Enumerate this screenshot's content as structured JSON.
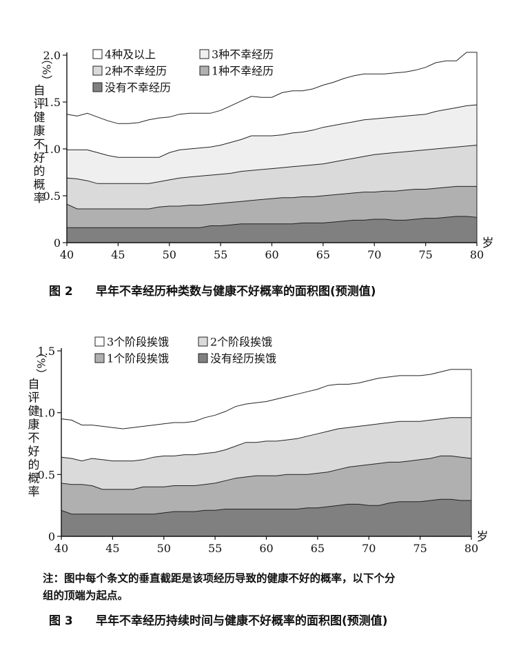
{
  "chart_data": [
    {
      "type": "area",
      "figure_label": "图 2",
      "title": "早年不幸经历种类数与健康不好概率的面积图(预测值)",
      "ylabel": "自评健康不好的概率（%）",
      "ylabel_unit": "（%）",
      "ylabel_text": [
        "自",
        "评",
        "健",
        "康",
        "不",
        "好",
        "的",
        "概",
        "率"
      ],
      "xlabel": "岁",
      "ylim": [
        0,
        2.0
      ],
      "xlim": [
        40,
        80
      ],
      "x_ticks": [
        40,
        45,
        50,
        55,
        60,
        65,
        70,
        75,
        80
      ],
      "y_ticks": [
        0,
        0.5,
        1.0,
        1.5,
        2.0
      ],
      "y_tick_labels": [
        "0",
        "0.5",
        "1.0",
        "1.5",
        "2.0"
      ],
      "x": [
        40,
        41,
        42,
        43,
        44,
        45,
        46,
        47,
        48,
        49,
        50,
        51,
        52,
        53,
        54,
        55,
        56,
        57,
        58,
        59,
        60,
        61,
        62,
        63,
        64,
        65,
        66,
        67,
        68,
        69,
        70,
        71,
        72,
        73,
        74,
        75,
        76,
        77,
        78,
        79,
        80
      ],
      "legend": [
        "4种及以上",
        "3种不幸经历",
        "2种不幸经历",
        "1种不幸经历",
        "没有不幸经历"
      ],
      "series": [
        {
          "name": "没有不幸经历",
          "color": "#808080",
          "values": [
            0.16,
            0.16,
            0.16,
            0.16,
            0.16,
            0.16,
            0.16,
            0.16,
            0.16,
            0.16,
            0.16,
            0.16,
            0.16,
            0.16,
            0.18,
            0.18,
            0.19,
            0.2,
            0.2,
            0.2,
            0.2,
            0.2,
            0.2,
            0.21,
            0.21,
            0.21,
            0.22,
            0.23,
            0.24,
            0.24,
            0.25,
            0.25,
            0.24,
            0.24,
            0.25,
            0.26,
            0.26,
            0.27,
            0.28,
            0.28,
            0.27
          ]
        },
        {
          "name": "1种不幸经历",
          "color": "#b0b0b0",
          "values": [
            0.41,
            0.36,
            0.36,
            0.36,
            0.36,
            0.36,
            0.36,
            0.36,
            0.36,
            0.38,
            0.39,
            0.39,
            0.4,
            0.4,
            0.41,
            0.42,
            0.43,
            0.44,
            0.45,
            0.46,
            0.47,
            0.48,
            0.48,
            0.49,
            0.49,
            0.5,
            0.51,
            0.52,
            0.53,
            0.54,
            0.54,
            0.55,
            0.55,
            0.56,
            0.57,
            0.57,
            0.58,
            0.59,
            0.6,
            0.6,
            0.6
          ]
        },
        {
          "name": "2种不幸经历",
          "color": "#dadada",
          "values": [
            0.69,
            0.68,
            0.66,
            0.63,
            0.63,
            0.63,
            0.63,
            0.63,
            0.63,
            0.65,
            0.67,
            0.69,
            0.7,
            0.71,
            0.72,
            0.73,
            0.74,
            0.76,
            0.77,
            0.78,
            0.79,
            0.8,
            0.81,
            0.82,
            0.83,
            0.84,
            0.86,
            0.88,
            0.9,
            0.92,
            0.94,
            0.95,
            0.96,
            0.97,
            0.98,
            0.99,
            1.0,
            1.01,
            1.02,
            1.03,
            1.04
          ]
        },
        {
          "name": "3种不幸经历",
          "color": "#efefef",
          "values": [
            0.99,
            0.99,
            0.99,
            0.96,
            0.93,
            0.91,
            0.91,
            0.91,
            0.91,
            0.91,
            0.96,
            0.99,
            1.0,
            1.01,
            1.02,
            1.04,
            1.07,
            1.1,
            1.14,
            1.14,
            1.14,
            1.15,
            1.17,
            1.18,
            1.2,
            1.23,
            1.25,
            1.27,
            1.29,
            1.31,
            1.32,
            1.33,
            1.34,
            1.35,
            1.36,
            1.37,
            1.4,
            1.42,
            1.44,
            1.46,
            1.47
          ]
        },
        {
          "name": "4种及以上",
          "color": "#ffffff",
          "values": [
            1.37,
            1.35,
            1.38,
            1.34,
            1.3,
            1.27,
            1.27,
            1.28,
            1.31,
            1.33,
            1.34,
            1.37,
            1.38,
            1.38,
            1.38,
            1.41,
            1.46,
            1.51,
            1.56,
            1.55,
            1.55,
            1.6,
            1.62,
            1.62,
            1.64,
            1.68,
            1.71,
            1.75,
            1.78,
            1.8,
            1.8,
            1.8,
            1.81,
            1.82,
            1.84,
            1.87,
            1.92,
            1.94,
            1.94,
            2.03,
            2.03
          ]
        }
      ]
    },
    {
      "type": "area",
      "figure_label": "图 3",
      "title": "早年不幸经历持续时间与健康不好概率的面积图(预测值)",
      "ylabel": "自评健康不好的概率（%）",
      "ylabel_unit": "（%）",
      "ylabel_text": [
        "自",
        "评",
        "健",
        "康",
        "不",
        "好",
        "的",
        "概",
        "率"
      ],
      "xlabel": "岁",
      "ylim": [
        0,
        1.5
      ],
      "xlim": [
        40,
        80
      ],
      "x_ticks": [
        40,
        45,
        50,
        55,
        60,
        65,
        70,
        75,
        80
      ],
      "y_ticks": [
        0,
        0.5,
        1.0,
        1.5
      ],
      "y_tick_labels": [
        "0",
        "0.5",
        "1.0",
        "1.5"
      ],
      "x": [
        40,
        41,
        42,
        43,
        44,
        45,
        46,
        47,
        48,
        49,
        50,
        51,
        52,
        53,
        54,
        55,
        56,
        57,
        58,
        59,
        60,
        61,
        62,
        63,
        64,
        65,
        66,
        67,
        68,
        69,
        70,
        71,
        72,
        73,
        74,
        75,
        76,
        77,
        78,
        79,
        80
      ],
      "legend": [
        "3个阶段挨饿",
        "2个阶段挨饿",
        "1个阶段挨饿",
        "没有经历挨饿"
      ],
      "series": [
        {
          "name": "没有经历挨饿",
          "color": "#808080",
          "values": [
            0.21,
            0.18,
            0.18,
            0.18,
            0.18,
            0.18,
            0.18,
            0.18,
            0.18,
            0.18,
            0.19,
            0.2,
            0.2,
            0.2,
            0.21,
            0.21,
            0.22,
            0.22,
            0.22,
            0.22,
            0.22,
            0.22,
            0.22,
            0.22,
            0.23,
            0.23,
            0.24,
            0.25,
            0.26,
            0.26,
            0.25,
            0.25,
            0.27,
            0.28,
            0.28,
            0.28,
            0.29,
            0.3,
            0.3,
            0.29,
            0.29
          ]
        },
        {
          "name": "1个阶段挨饿",
          "color": "#b0b0b0",
          "values": [
            0.43,
            0.42,
            0.42,
            0.41,
            0.38,
            0.38,
            0.38,
            0.38,
            0.4,
            0.4,
            0.4,
            0.41,
            0.41,
            0.41,
            0.42,
            0.43,
            0.45,
            0.47,
            0.48,
            0.49,
            0.49,
            0.49,
            0.5,
            0.5,
            0.5,
            0.51,
            0.52,
            0.54,
            0.56,
            0.57,
            0.58,
            0.59,
            0.6,
            0.6,
            0.61,
            0.62,
            0.63,
            0.65,
            0.65,
            0.64,
            0.63
          ]
        },
        {
          "name": "2个阶段挨饿",
          "color": "#dadada",
          "values": [
            0.64,
            0.63,
            0.61,
            0.63,
            0.62,
            0.61,
            0.61,
            0.61,
            0.62,
            0.64,
            0.65,
            0.65,
            0.66,
            0.66,
            0.67,
            0.68,
            0.7,
            0.73,
            0.76,
            0.76,
            0.77,
            0.77,
            0.78,
            0.79,
            0.81,
            0.83,
            0.85,
            0.87,
            0.88,
            0.89,
            0.9,
            0.91,
            0.92,
            0.93,
            0.93,
            0.93,
            0.94,
            0.95,
            0.96,
            0.96,
            0.96
          ]
        },
        {
          "name": "3个阶段挨饿",
          "color": "#ffffff",
          "values": [
            0.95,
            0.94,
            0.9,
            0.9,
            0.89,
            0.88,
            0.87,
            0.88,
            0.89,
            0.9,
            0.91,
            0.92,
            0.92,
            0.93,
            0.96,
            0.98,
            1.01,
            1.05,
            1.07,
            1.08,
            1.09,
            1.11,
            1.13,
            1.15,
            1.17,
            1.19,
            1.22,
            1.23,
            1.23,
            1.24,
            1.26,
            1.28,
            1.29,
            1.3,
            1.3,
            1.3,
            1.31,
            1.33,
            1.35,
            1.35,
            1.35
          ]
        }
      ]
    }
  ],
  "note": {
    "line1": "注：图中每个条文的垂直截距是该项经历导致的健康不好的概率，以下个分",
    "line2": "组的顶端为起点。"
  }
}
